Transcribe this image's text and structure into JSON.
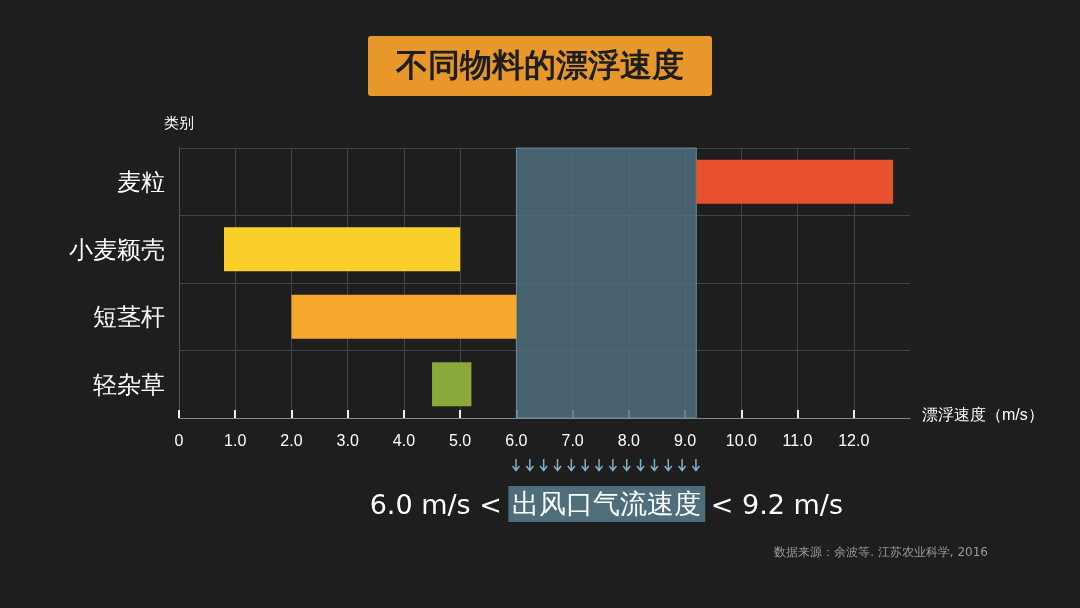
{
  "chart_data": {
    "type": "bar",
    "orientation": "horizontal",
    "title": "不同物料的漂浮速度",
    "xlabel": "漂浮速度（m/s）",
    "ylabel": "类别",
    "categories": [
      "麦粒",
      "小麦颖壳",
      "短茎杆",
      "轻杂草"
    ],
    "base": [
      9.2,
      0.8,
      2.0,
      4.5
    ],
    "values": [
      3.5,
      4.2,
      4.0,
      0.7
    ],
    "colors": [
      "#e8512e",
      "#fbcf2a",
      "#f6a82c",
      "#8ba83a"
    ],
    "xlim": [
      0,
      13
    ],
    "xticks": [
      {
        "value": 0,
        "label": "0"
      },
      {
        "value": 1,
        "label": "1.0"
      },
      {
        "value": 2,
        "label": "2.0"
      },
      {
        "value": 3,
        "label": "3.0"
      },
      {
        "value": 4,
        "label": "4.0"
      },
      {
        "value": 5,
        "label": "5.0"
      },
      {
        "value": 6,
        "label": "6.0"
      },
      {
        "value": 7,
        "label": "7.0"
      },
      {
        "value": 8,
        "label": "8.0"
      },
      {
        "value": 9,
        "label": "9.0"
      },
      {
        "value": 10,
        "label": "10.0"
      },
      {
        "value": 11,
        "label": "11.0"
      },
      {
        "value": 12,
        "label": "12.0"
      }
    ],
    "bands": [
      {
        "axis": "x",
        "from": 6.0,
        "to": 9.2,
        "label": "出风口气流速度",
        "color": "#4f6e7c"
      }
    ],
    "annotations": [
      "6.0 m/s <",
      "< 9.2 m/s",
      "数据来源：余波等. 江苏农业科学, 2016"
    ],
    "grid": true
  }
}
